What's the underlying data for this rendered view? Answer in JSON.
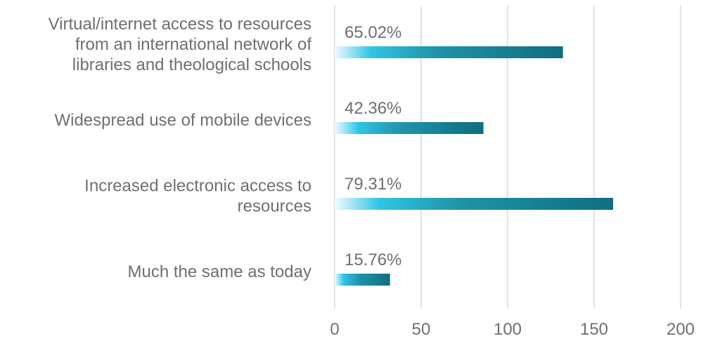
{
  "chart_data": {
    "type": "bar",
    "orientation": "horizontal",
    "categories": [
      [
        "Virtual/internet access to resources",
        "from an international network of",
        "libraries and theological schools"
      ],
      [
        "Widespread use of mobile devices"
      ],
      [
        "Increased electronic access to",
        "resources"
      ],
      [
        "Much the same as today"
      ]
    ],
    "series": [
      {
        "values": [
          132,
          86,
          161,
          32
        ],
        "data_labels": [
          "65.02%",
          "42.36%",
          "79.31%",
          "15.76%"
        ]
      }
    ],
    "xlim": [
      0,
      200
    ],
    "xticks": [
      0,
      50,
      100,
      150,
      200
    ],
    "grid": "vertical",
    "colors": {
      "bar_light": "#eafaff",
      "bar_mid": "#2fc4e6",
      "bar_dark": "#0f6e80",
      "grid": "#d9d9d9",
      "text": "#6f6f6f"
    }
  }
}
